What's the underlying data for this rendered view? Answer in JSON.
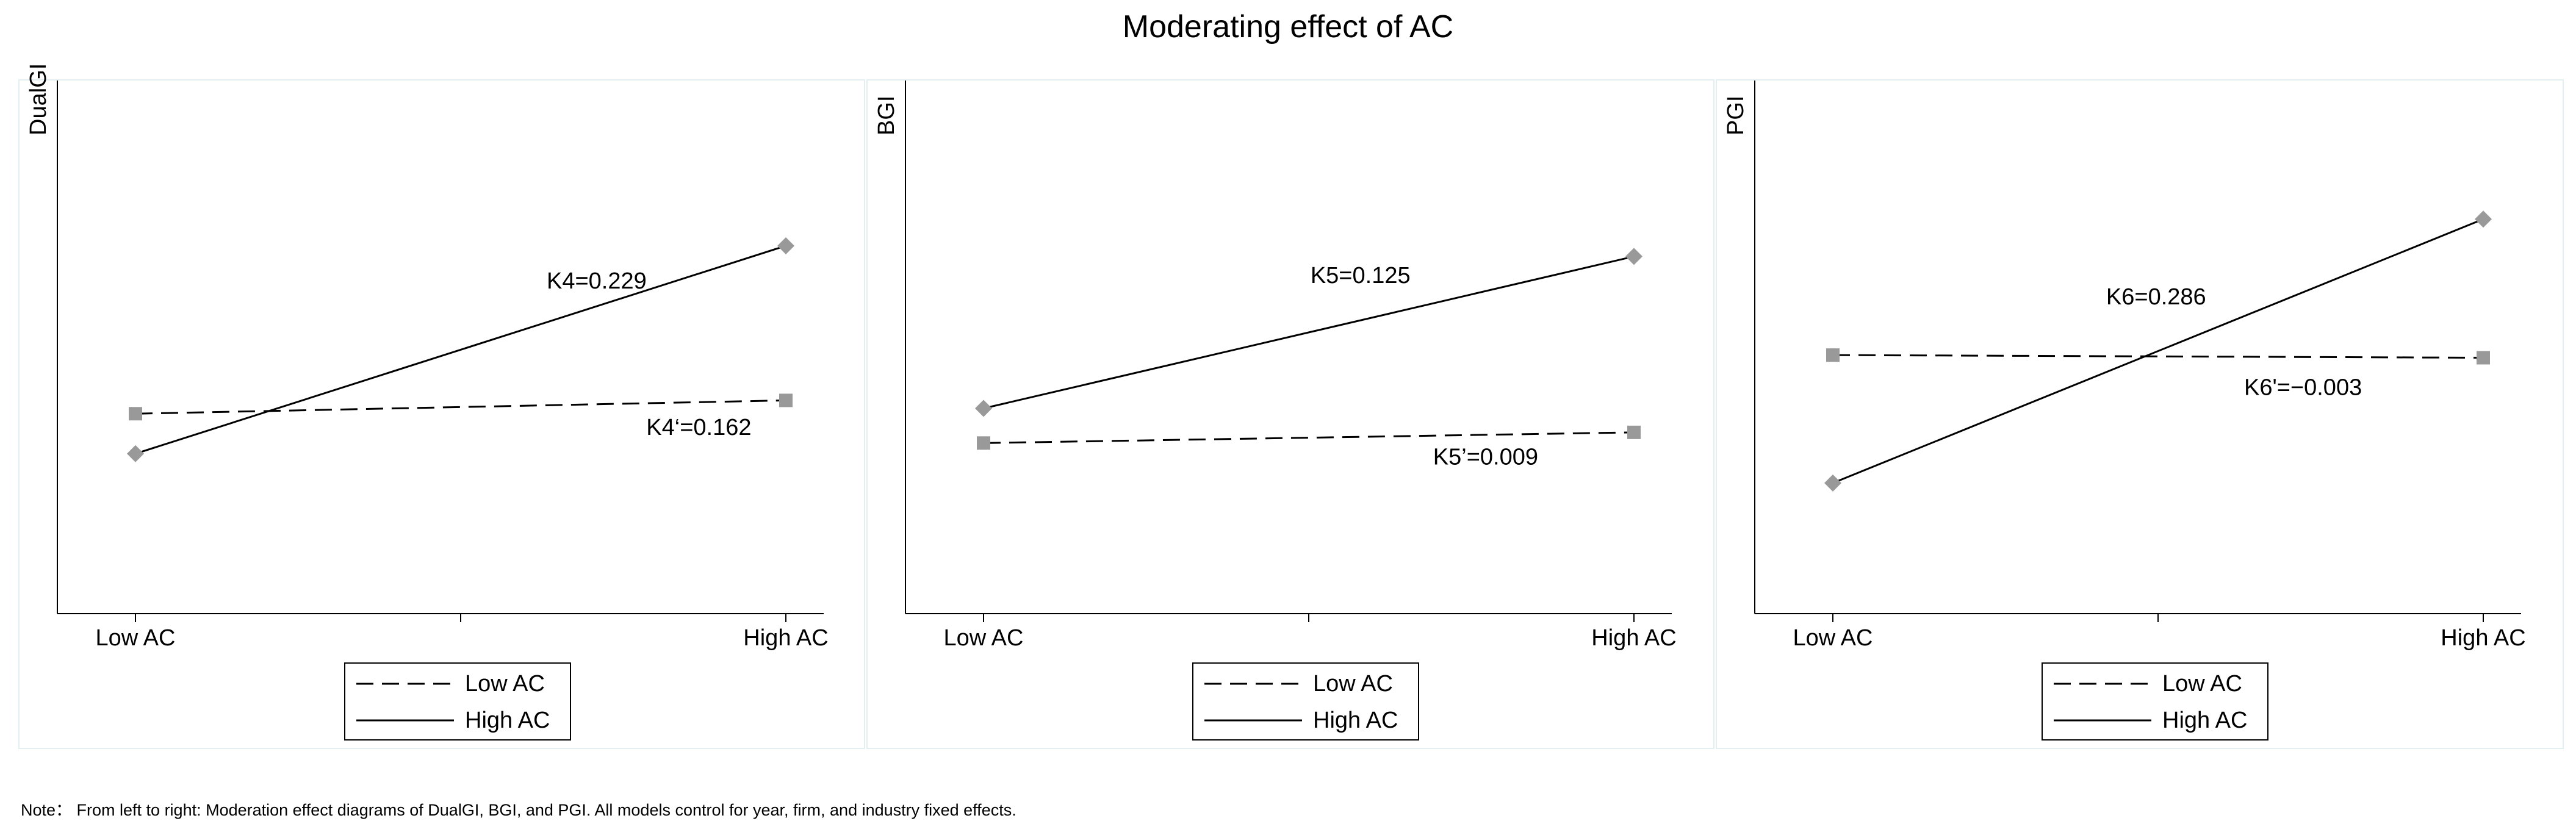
{
  "title": "Moderating effect of AC",
  "note": "Note： From left to right: Moderation effect diagrams of DualGI, BGI, and PGI. All models control for year, firm, and industry fixed effects.",
  "colors": {
    "line": "#000000",
    "marker": "#999999",
    "panel_border": "#e2eef0"
  },
  "chart_data": [
    {
      "type": "line",
      "ylabel": "DualGI",
      "categories": [
        "Low AC",
        "High AC"
      ],
      "ylim": [
        0,
        1
      ],
      "grid": false,
      "legend": {
        "position": "bottom",
        "entries": [
          "Low AC",
          "High AC"
        ]
      },
      "series": [
        {
          "name": "Low AC",
          "style": "dashed",
          "marker": "square",
          "values": [
            0.375,
            0.4
          ]
        },
        {
          "name": "High AC",
          "style": "solid",
          "marker": "diamond",
          "values": [
            0.3,
            0.69
          ]
        }
      ],
      "annotations": [
        {
          "text": "K4=0.229",
          "x": 0.75,
          "y": 0.61
        },
        {
          "text": "K4‘=0.162",
          "x": 0.88,
          "y": 0.335
        }
      ]
    },
    {
      "type": "line",
      "ylabel": "BGI",
      "categories": [
        "Low AC",
        "High AC"
      ],
      "ylim": [
        0,
        1
      ],
      "grid": false,
      "legend": {
        "position": "bottom",
        "entries": [
          "Low AC",
          "High AC"
        ]
      },
      "series": [
        {
          "name": "Low AC",
          "style": "dashed",
          "marker": "square",
          "values": [
            0.32,
            0.34
          ]
        },
        {
          "name": "High AC",
          "style": "solid",
          "marker": "diamond",
          "values": [
            0.385,
            0.67
          ]
        }
      ],
      "annotations": [
        {
          "text": "K5=0.125",
          "x": 0.64,
          "y": 0.62
        },
        {
          "text": "K5’=0.009",
          "x": 0.8,
          "y": 0.28
        }
      ]
    },
    {
      "type": "line",
      "ylabel": "PGI",
      "categories": [
        "Low AC",
        "High AC"
      ],
      "ylim": [
        0,
        1
      ],
      "grid": false,
      "legend": {
        "position": "bottom",
        "entries": [
          "Low AC",
          "High AC"
        ]
      },
      "series": [
        {
          "name": "Low AC",
          "style": "dashed",
          "marker": "square",
          "values": [
            0.485,
            0.48
          ]
        },
        {
          "name": "High AC",
          "style": "solid",
          "marker": "diamond",
          "values": [
            0.245,
            0.74
          ]
        }
      ],
      "annotations": [
        {
          "text": "K6=0.286",
          "x": 0.57,
          "y": 0.58
        },
        {
          "text": "K6'=−0.003",
          "x": 0.75,
          "y": 0.41
        }
      ]
    }
  ]
}
